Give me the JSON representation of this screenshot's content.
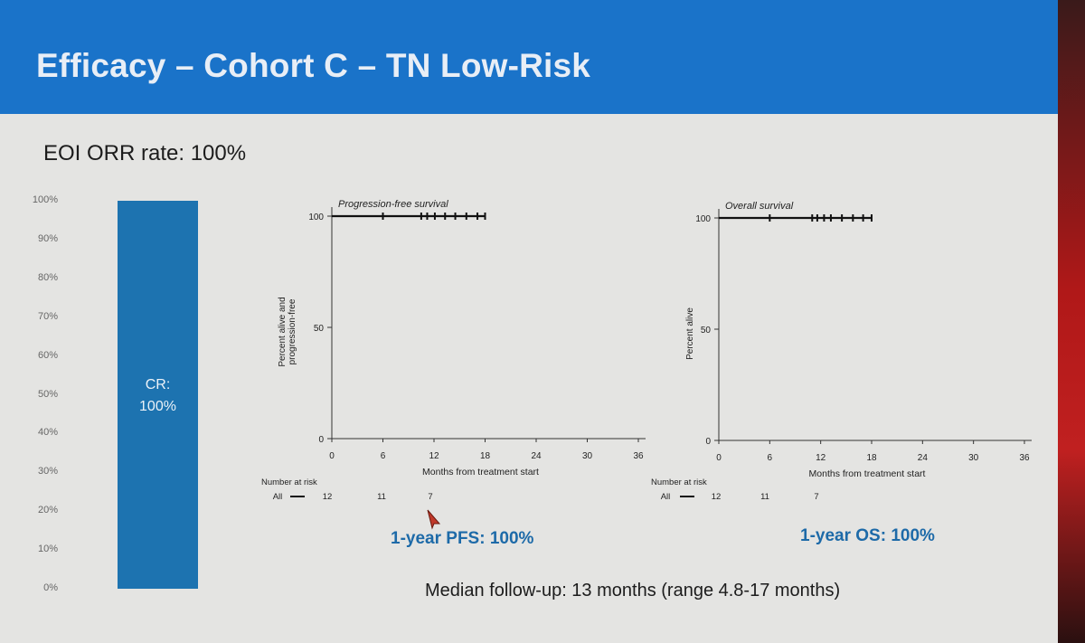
{
  "slide": {
    "title": "Efficacy – Cohort C – TN Low-Risk",
    "orr_text": "EOI ORR rate: 100%",
    "followup_text": "Median follow-up: 13 months (range 4.8-17 months)",
    "pfs_note": "1-year PFS: 100%",
    "os_note": "1-year OS: 100%"
  },
  "colors": {
    "header": "#1a73c9",
    "bar": "#1d73b0",
    "note": "#1d6aa8"
  },
  "chart_data": [
    {
      "type": "bar",
      "title": "EOI ORR rate: 100%",
      "categories": [
        "CR"
      ],
      "values": [
        100
      ],
      "bar_label": [
        "CR:",
        "100%"
      ],
      "ylim": [
        0,
        100
      ],
      "yticks": [
        "0%",
        "10%",
        "20%",
        "30%",
        "40%",
        "50%",
        "60%",
        "70%",
        "80%",
        "90%",
        "100%"
      ]
    },
    {
      "type": "line",
      "title": "Progression-free survival",
      "xlabel": "Months from treatment start",
      "ylabel": "Percent alive and progression-free",
      "xlim": [
        0,
        36
      ],
      "ylim": [
        0,
        100
      ],
      "xticks": [
        0,
        6,
        12,
        18,
        24,
        30,
        36
      ],
      "yticks": [
        0,
        50,
        100
      ],
      "series": [
        {
          "name": "All",
          "x": [
            0,
            18
          ],
          "y": [
            100,
            100
          ]
        }
      ],
      "censor_times": [
        6,
        10.5,
        11.2,
        12.1,
        13.3,
        14.5,
        15.8,
        17.1,
        18
      ],
      "risk_table": {
        "label": "Number at risk",
        "group": "All",
        "values": [
          12,
          11,
          7
        ]
      }
    },
    {
      "type": "line",
      "title": "Overall survival",
      "xlabel": "Months from treatment start",
      "ylabel": "Percent alive",
      "xlim": [
        0,
        36
      ],
      "ylim": [
        0,
        100
      ],
      "xticks": [
        0,
        6,
        12,
        18,
        24,
        30,
        36
      ],
      "yticks": [
        0,
        50,
        100
      ],
      "series": [
        {
          "name": "All",
          "x": [
            0,
            18
          ],
          "y": [
            100,
            100
          ]
        }
      ],
      "censor_times": [
        6,
        11,
        11.6,
        12.4,
        13.2,
        14.5,
        15.8,
        17,
        18
      ],
      "risk_table": {
        "label": "Number at risk",
        "group": "All",
        "values": [
          12,
          11,
          7
        ]
      }
    }
  ]
}
